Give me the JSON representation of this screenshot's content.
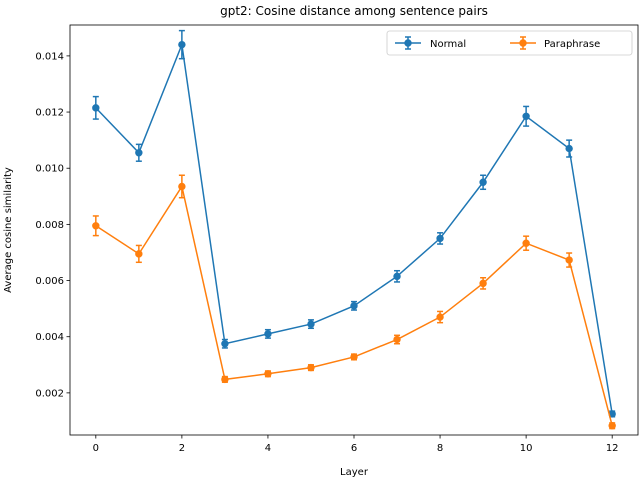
{
  "chart_data": {
    "type": "line",
    "title": "gpt2: Cosine distance among sentence pairs",
    "xlabel": "Layer",
    "ylabel": "Average cosine similarity",
    "xlim": [
      -0.6,
      12.6
    ],
    "ylim": [
      0.0005,
      0.0151
    ],
    "xticks": [
      0,
      2,
      4,
      6,
      8,
      10,
      12
    ],
    "xtick_labels": [
      "0",
      "2",
      "4",
      "6",
      "8",
      "10",
      "12"
    ],
    "yticks": [
      0.002,
      0.004,
      0.006,
      0.008,
      0.01,
      0.012,
      0.014
    ],
    "ytick_labels": [
      "0.002",
      "0.004",
      "0.006",
      "0.008",
      "0.010",
      "0.012",
      "0.014"
    ],
    "grid": false,
    "legend": "top-right",
    "x": [
      0,
      1,
      2,
      3,
      4,
      5,
      6,
      7,
      8,
      9,
      10,
      11,
      12
    ],
    "series": [
      {
        "name": "Normal",
        "color": "#1f77b4",
        "values": [
          0.01215,
          0.01055,
          0.0144,
          0.00375,
          0.0041,
          0.00445,
          0.0051,
          0.00615,
          0.0075,
          0.0095,
          0.01185,
          0.0107,
          0.00125
        ],
        "errors": [
          0.0004,
          0.0003,
          0.0005,
          0.00015,
          0.00015,
          0.00015,
          0.00015,
          0.0002,
          0.0002,
          0.00025,
          0.00035,
          0.0003,
          0.0001
        ]
      },
      {
        "name": "Paraphrase",
        "color": "#ff7f0e",
        "values": [
          0.00795,
          0.00695,
          0.00935,
          0.00248,
          0.00268,
          0.0029,
          0.00328,
          0.0039,
          0.0047,
          0.0059,
          0.00733,
          0.00673,
          0.00083
        ],
        "errors": [
          0.00035,
          0.0003,
          0.0004,
          0.0001,
          0.0001,
          0.0001,
          0.0001,
          0.00015,
          0.0002,
          0.0002,
          0.00025,
          0.00025,
          0.0001
        ]
      }
    ]
  }
}
